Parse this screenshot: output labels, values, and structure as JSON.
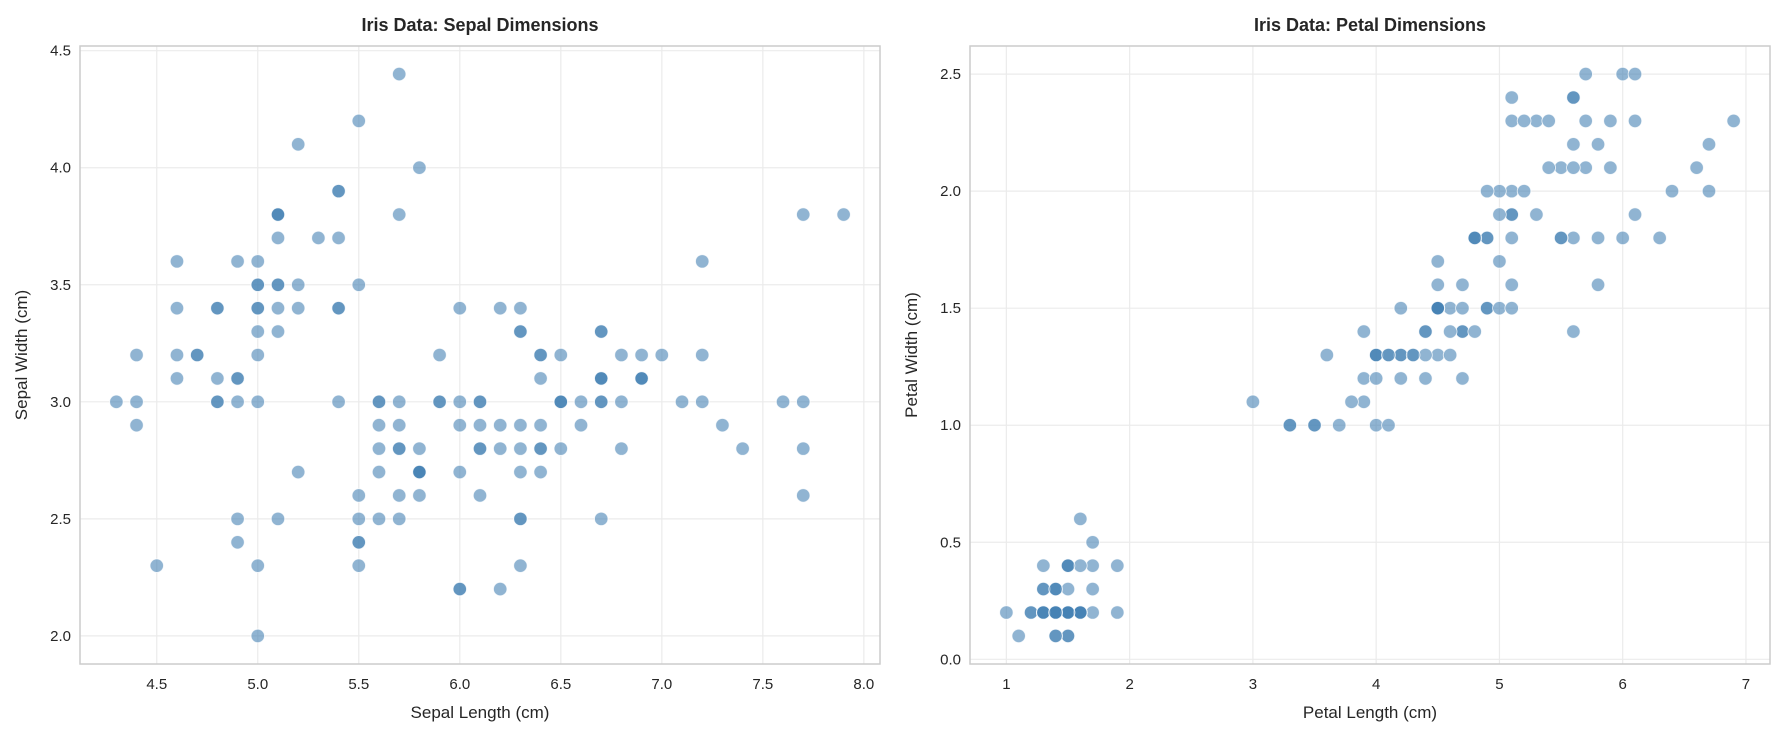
{
  "chart_data": [
    {
      "type": "scatter",
      "title": "Iris Data: Sepal Dimensions",
      "xlabel": "Sepal Length (cm)",
      "ylabel": "Sepal Width (cm)",
      "xlim": [
        4.12,
        8.08
      ],
      "ylim": [
        1.88,
        4.52
      ],
      "xticks": [
        "4.5",
        "5.0",
        "5.5",
        "6.0",
        "6.5",
        "7.0",
        "7.5",
        "8.0"
      ],
      "yticks": [
        "2.0",
        "2.5",
        "3.0",
        "3.5",
        "4.0",
        "4.5"
      ],
      "grid": true,
      "color": "#4682b4",
      "alpha": 0.6,
      "x": [
        5.1,
        4.9,
        4.7,
        4.6,
        5.0,
        5.4,
        4.6,
        5.0,
        4.4,
        4.9,
        5.4,
        4.8,
        4.8,
        4.3,
        5.8,
        5.7,
        5.4,
        5.1,
        5.7,
        5.1,
        5.4,
        5.1,
        4.6,
        5.1,
        4.8,
        5.0,
        5.0,
        5.2,
        5.2,
        4.7,
        4.8,
        5.4,
        5.2,
        5.5,
        4.9,
        5.0,
        5.5,
        4.9,
        4.4,
        5.1,
        5.0,
        4.5,
        4.4,
        5.0,
        5.1,
        4.8,
        5.1,
        4.6,
        5.3,
        5.0,
        7.0,
        6.4,
        6.9,
        5.5,
        6.5,
        5.7,
        6.3,
        4.9,
        6.6,
        5.2,
        5.0,
        5.9,
        6.0,
        6.1,
        5.6,
        6.7,
        5.6,
        5.8,
        6.2,
        5.6,
        5.9,
        6.1,
        6.3,
        6.1,
        6.4,
        6.6,
        6.8,
        6.7,
        6.0,
        5.7,
        5.5,
        5.5,
        5.8,
        6.0,
        5.4,
        6.0,
        6.7,
        6.3,
        5.6,
        5.5,
        5.5,
        6.1,
        5.8,
        5.0,
        5.6,
        5.7,
        5.7,
        6.2,
        5.1,
        5.7,
        6.3,
        5.8,
        7.1,
        6.3,
        6.5,
        7.6,
        4.9,
        7.3,
        6.7,
        7.2,
        6.5,
        6.4,
        6.8,
        5.7,
        5.8,
        6.4,
        6.5,
        7.7,
        7.7,
        6.0,
        6.9,
        5.6,
        7.7,
        6.3,
        6.7,
        7.2,
        6.2,
        6.1,
        6.4,
        7.2,
        7.4,
        7.9,
        6.4,
        6.3,
        6.1,
        7.7,
        6.3,
        6.4,
        6.0,
        6.9,
        6.7,
        6.9,
        5.8,
        6.8,
        6.7,
        6.7,
        6.3,
        6.5,
        6.2,
        5.9
      ],
      "y": [
        3.5,
        3.0,
        3.2,
        3.1,
        3.6,
        3.9,
        3.4,
        3.4,
        2.9,
        3.1,
        3.7,
        3.4,
        3.0,
        3.0,
        4.0,
        4.4,
        3.9,
        3.5,
        3.8,
        3.8,
        3.4,
        3.7,
        3.6,
        3.3,
        3.4,
        3.0,
        3.4,
        3.5,
        3.4,
        3.2,
        3.1,
        3.4,
        4.1,
        4.2,
        3.1,
        3.2,
        3.5,
        3.6,
        3.0,
        3.4,
        3.5,
        2.3,
        3.2,
        3.5,
        3.8,
        3.0,
        3.8,
        3.2,
        3.7,
        3.3,
        3.2,
        3.2,
        3.1,
        2.3,
        2.8,
        2.8,
        3.3,
        2.4,
        2.9,
        2.7,
        2.0,
        3.0,
        2.2,
        2.9,
        2.9,
        3.1,
        3.0,
        2.7,
        2.2,
        2.5,
        3.2,
        2.8,
        2.5,
        2.8,
        2.9,
        3.0,
        2.8,
        3.0,
        2.9,
        2.6,
        2.4,
        2.4,
        2.7,
        2.7,
        3.0,
        3.4,
        3.1,
        2.3,
        3.0,
        2.5,
        2.6,
        3.0,
        2.6,
        2.3,
        2.7,
        3.0,
        2.9,
        2.9,
        2.5,
        2.8,
        3.3,
        2.7,
        3.0,
        2.9,
        3.0,
        3.0,
        2.5,
        2.9,
        2.5,
        3.6,
        3.2,
        2.7,
        3.0,
        2.5,
        2.8,
        3.2,
        3.0,
        3.8,
        2.6,
        2.2,
        3.2,
        2.8,
        2.8,
        2.7,
        3.3,
        3.2,
        2.8,
        3.0,
        2.8,
        3.0,
        2.8,
        3.8,
        2.8,
        2.8,
        2.6,
        3.0,
        3.4,
        3.1,
        3.0,
        3.1,
        3.1,
        3.1,
        2.7,
        3.2,
        3.3,
        3.0,
        2.5,
        3.0,
        3.4,
        3.0
      ]
    },
    {
      "type": "scatter",
      "title": "Iris Data: Petal Dimensions",
      "xlabel": "Petal Length (cm)",
      "ylabel": "Petal Width (cm)",
      "xlim": [
        0.705,
        7.195
      ],
      "ylim": [
        -0.02,
        2.62
      ],
      "xticks": [
        "1",
        "2",
        "3",
        "4",
        "5",
        "6",
        "7"
      ],
      "yticks": [
        "0.0",
        "0.5",
        "1.0",
        "1.5",
        "2.0",
        "2.5"
      ],
      "grid": true,
      "color": "#4682b4",
      "alpha": 0.6,
      "x": [
        1.4,
        1.4,
        1.3,
        1.5,
        1.4,
        1.7,
        1.4,
        1.5,
        1.4,
        1.5,
        1.5,
        1.6,
        1.4,
        1.1,
        1.2,
        1.5,
        1.3,
        1.4,
        1.7,
        1.5,
        1.7,
        1.5,
        1.0,
        1.7,
        1.9,
        1.6,
        1.6,
        1.5,
        1.4,
        1.6,
        1.6,
        1.5,
        1.5,
        1.4,
        1.5,
        1.2,
        1.3,
        1.4,
        1.3,
        1.5,
        1.3,
        1.3,
        1.3,
        1.6,
        1.9,
        1.4,
        1.6,
        1.4,
        1.5,
        1.4,
        4.7,
        4.5,
        4.9,
        4.0,
        4.6,
        4.5,
        4.7,
        3.3,
        4.6,
        3.9,
        3.5,
        4.2,
        4.0,
        4.7,
        3.6,
        4.4,
        4.5,
        4.1,
        4.5,
        3.9,
        4.8,
        4.0,
        4.9,
        4.7,
        4.3,
        4.4,
        4.8,
        5.0,
        4.5,
        3.5,
        3.8,
        3.7,
        3.9,
        5.1,
        4.5,
        4.5,
        4.7,
        4.4,
        4.1,
        4.0,
        4.4,
        4.6,
        4.0,
        3.3,
        4.2,
        4.2,
        4.2,
        4.3,
        3.0,
        4.1,
        6.0,
        5.1,
        5.9,
        5.6,
        5.8,
        6.6,
        4.5,
        6.3,
        5.8,
        6.1,
        5.1,
        5.3,
        5.5,
        5.0,
        5.1,
        5.3,
        5.5,
        6.7,
        6.9,
        5.0,
        5.7,
        4.9,
        6.7,
        4.9,
        5.7,
        6.0,
        4.8,
        4.9,
        5.6,
        5.8,
        6.1,
        6.4,
        5.6,
        5.1,
        5.6,
        6.1,
        5.6,
        5.5,
        4.8,
        5.4,
        5.6,
        5.1,
        5.1,
        5.9,
        5.7,
        5.2,
        5.0,
        5.2,
        5.4,
        5.1
      ],
      "y": [
        0.2,
        0.2,
        0.2,
        0.2,
        0.2,
        0.4,
        0.3,
        0.2,
        0.2,
        0.1,
        0.2,
        0.2,
        0.1,
        0.1,
        0.2,
        0.4,
        0.4,
        0.3,
        0.3,
        0.3,
        0.2,
        0.4,
        0.2,
        0.5,
        0.2,
        0.2,
        0.4,
        0.2,
        0.2,
        0.2,
        0.2,
        0.4,
        0.1,
        0.2,
        0.2,
        0.2,
        0.2,
        0.1,
        0.2,
        0.2,
        0.3,
        0.3,
        0.2,
        0.6,
        0.4,
        0.3,
        0.2,
        0.2,
        0.2,
        0.2,
        1.4,
        1.5,
        1.5,
        1.3,
        1.5,
        1.3,
        1.6,
        1.0,
        1.3,
        1.4,
        1.0,
        1.5,
        1.0,
        1.4,
        1.3,
        1.4,
        1.5,
        1.0,
        1.5,
        1.1,
        1.8,
        1.3,
        1.5,
        1.2,
        1.3,
        1.4,
        1.4,
        1.7,
        1.5,
        1.0,
        1.1,
        1.0,
        1.2,
        1.6,
        1.5,
        1.6,
        1.5,
        1.3,
        1.3,
        1.3,
        1.2,
        1.4,
        1.2,
        1.0,
        1.3,
        1.2,
        1.3,
        1.3,
        1.1,
        1.3,
        2.5,
        1.9,
        2.1,
        1.8,
        2.2,
        2.1,
        1.7,
        1.8,
        1.8,
        2.5,
        2.0,
        1.9,
        2.1,
        2.0,
        2.4,
        2.3,
        1.8,
        2.2,
        2.3,
        1.5,
        2.3,
        2.0,
        2.0,
        1.8,
        2.1,
        1.8,
        1.8,
        1.8,
        2.1,
        1.6,
        1.9,
        2.0,
        2.2,
        1.5,
        1.4,
        2.3,
        2.4,
        1.8,
        1.8,
        2.1,
        2.4,
        2.3,
        1.9,
        2.3,
        2.5,
        2.3,
        1.9,
        2.0,
        2.3,
        1.8
      ]
    }
  ]
}
